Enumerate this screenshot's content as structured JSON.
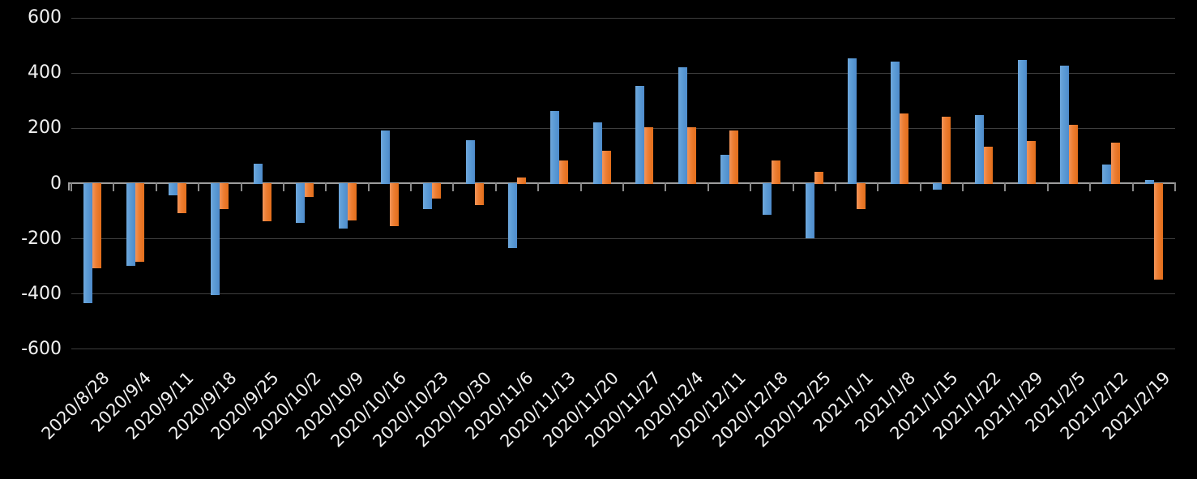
{
  "chart_data": {
    "type": "bar",
    "title": "",
    "xlabel": "",
    "ylabel": "",
    "legend_position": "none",
    "grid": true,
    "background_color": "#000000",
    "text_color": "#F0F0F0",
    "gridline_color": "#3E3E3E",
    "axis_line_color": "#9D9D9D",
    "tick_color": "#8A8A8A",
    "x_label_rotation_deg": 45,
    "ylim": [
      -600,
      600
    ],
    "ytick_interval": 200,
    "yticks": [
      600,
      400,
      200,
      0,
      -200,
      -400,
      -600
    ],
    "categories": [
      "2020/8/28",
      "2020/9/4",
      "2020/9/11",
      "2020/9/18",
      "2020/9/25",
      "2020/10/2",
      "2020/10/9",
      "2020/10/16",
      "2020/10/23",
      "2020/10/30",
      "2020/11/6",
      "2020/11/13",
      "2020/11/20",
      "2020/11/27",
      "2020/12/4",
      "2020/12/11",
      "2020/12/18",
      "2020/12/25",
      "2021/1/1",
      "2021/1/8",
      "2021/1/15",
      "2021/1/22",
      "2021/1/29",
      "2021/2/5",
      "2021/2/12",
      "2021/2/19"
    ],
    "series": [
      {
        "name": "blue-series",
        "color": "#5B9BD5",
        "values": [
          -430,
          -295,
          -40,
          -400,
          70,
          -140,
          -160,
          190,
          -90,
          155,
          -230,
          260,
          220,
          350,
          420,
          100,
          -110,
          -195,
          450,
          440,
          -20,
          245,
          445,
          425,
          65,
          10
        ]
      },
      {
        "name": "orange-series",
        "color": "#ED7D31",
        "values": [
          -305,
          -280,
          -105,
          -90,
          -135,
          -45,
          -130,
          -150,
          -50,
          -75,
          20,
          80,
          115,
          200,
          200,
          190,
          80,
          40,
          -90,
          250,
          240,
          130,
          150,
          210,
          145,
          -345
        ]
      }
    ]
  }
}
